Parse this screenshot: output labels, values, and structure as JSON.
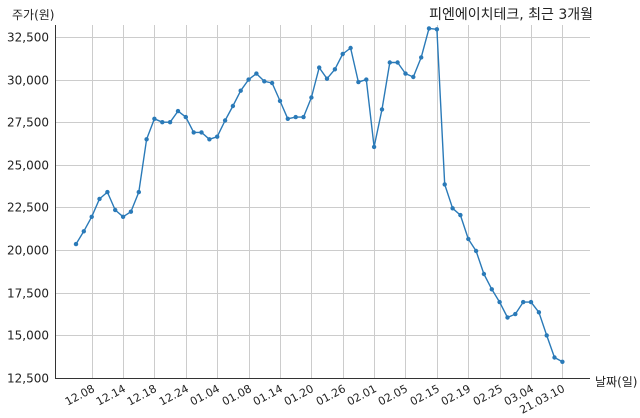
{
  "chart_data": {
    "type": "line",
    "title": "피엔에이치테크, 최근 3개월",
    "ylabel": "주가(원)",
    "xlabel": "날짜(일)",
    "ylim": [
      12500,
      33200
    ],
    "yticks": [
      12500,
      15000,
      17500,
      20000,
      22500,
      25000,
      27500,
      30000,
      32500
    ],
    "ytick_labels": [
      "12,500",
      "15,000",
      "17,500",
      "20,000",
      "22,500",
      "25,000",
      "27,500",
      "30,000",
      "32,500"
    ],
    "grid": true,
    "line_color": "#2a7ab8",
    "xtick_labels": [
      {
        "label": "12.08",
        "index": 2
      },
      {
        "label": "12.14",
        "index": 6
      },
      {
        "label": "12.18",
        "index": 10
      },
      {
        "label": "12.24",
        "index": 14
      },
      {
        "label": "01.04",
        "index": 18
      },
      {
        "label": "01.08",
        "index": 22
      },
      {
        "label": "01.14",
        "index": 26
      },
      {
        "label": "01.20",
        "index": 30
      },
      {
        "label": "01.26",
        "index": 34
      },
      {
        "label": "02.01",
        "index": 38
      },
      {
        "label": "02.05",
        "index": 42
      },
      {
        "label": "02.15",
        "index": 46
      },
      {
        "label": "02.19",
        "index": 50
      },
      {
        "label": "02.25",
        "index": 54
      },
      {
        "label": "03.04",
        "index": 58
      },
      {
        "label": "21.03.10",
        "index": 62
      }
    ],
    "values": [
      20350,
      21100,
      21950,
      23000,
      23400,
      22350,
      21950,
      22250,
      23400,
      26500,
      27700,
      27500,
      27500,
      28150,
      27800,
      26900,
      26900,
      26500,
      26650,
      27600,
      28450,
      29350,
      30000,
      30350,
      29900,
      29800,
      28750,
      27700,
      27800,
      27800,
      28950,
      30700,
      30050,
      30600,
      31500,
      31850,
      29850,
      30000,
      26050,
      28250,
      31000,
      31000,
      30350,
      30150,
      31300,
      33000,
      32950,
      23850,
      22450,
      22050,
      20650,
      19950,
      18600,
      17700,
      16950,
      16050,
      16250,
      16950,
      16950,
      16350,
      15000,
      13700,
      13450
    ]
  }
}
